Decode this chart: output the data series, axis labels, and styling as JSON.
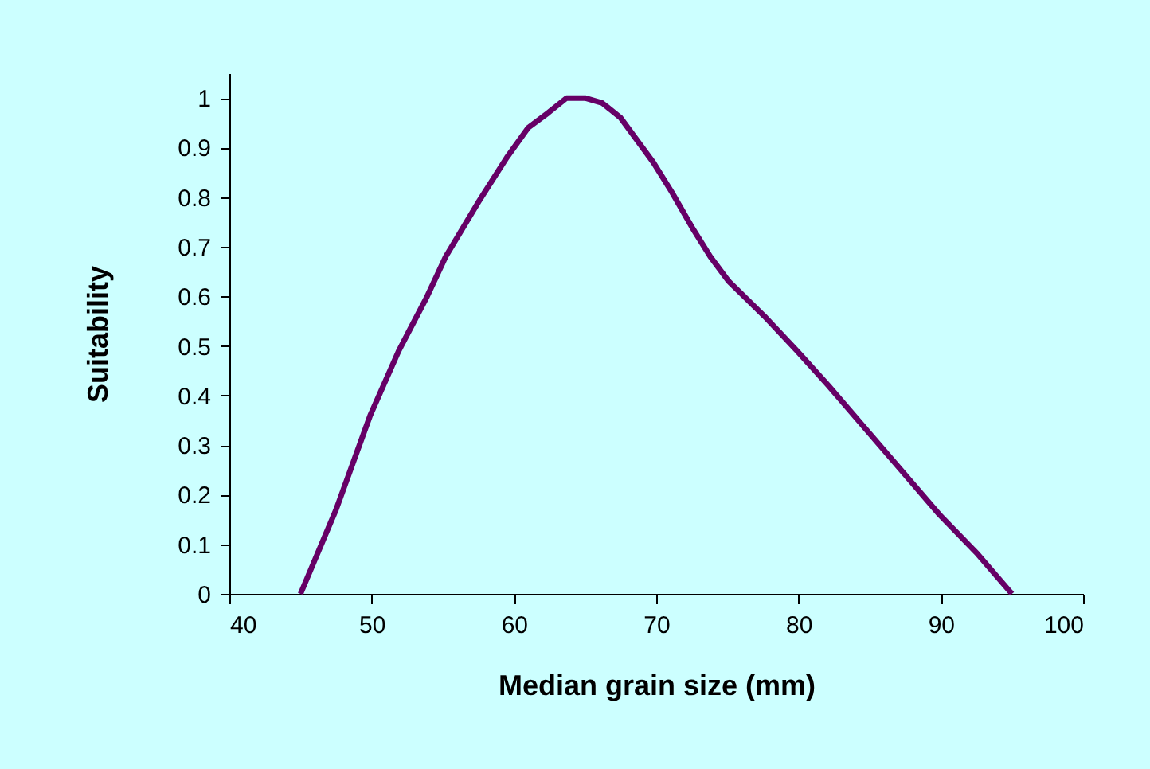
{
  "chart_data": {
    "type": "line",
    "xlabel": "Median grain size (mm)",
    "ylabel": "Suitability",
    "x": [
      45,
      47.5,
      49.9,
      51.9,
      53.9,
      55.2,
      57.5,
      59.5,
      61.0,
      62.4,
      63.7,
      65,
      66.2,
      67.5,
      69.8,
      71.1,
      72.5,
      73.8,
      75.1,
      77.6,
      79.9,
      82.1,
      84.8,
      87.2,
      89.9,
      92.6,
      95
    ],
    "series": [
      {
        "color": "#660066",
        "values": [
          0,
          0.17,
          0.36,
          0.49,
          0.6,
          0.68,
          0.79,
          0.88,
          0.94,
          0.97,
          1.0,
          1.0,
          0.99,
          0.96,
          0.87,
          0.81,
          0.74,
          0.68,
          0.63,
          0.56,
          0.49,
          0.42,
          0.33,
          0.25,
          0.16,
          0.08,
          0
        ]
      }
    ],
    "xlim": [
      40,
      100
    ],
    "xticks": [
      40,
      50,
      60,
      70,
      80,
      90,
      100
    ],
    "ylim": [
      0,
      1.05
    ],
    "yticks": [
      0,
      0.1,
      0.2,
      0.3,
      0.4,
      0.5,
      0.6,
      0.7,
      0.8,
      0.9,
      1
    ],
    "grid": false,
    "marker": "none",
    "line_style": "solid"
  }
}
